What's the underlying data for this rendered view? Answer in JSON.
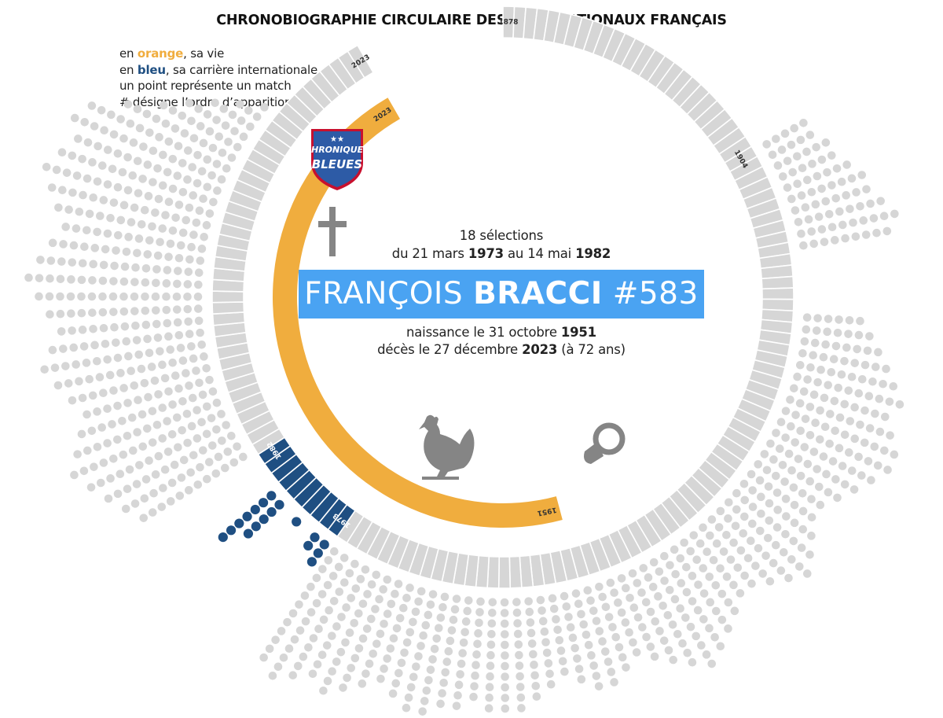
{
  "header": {
    "title": "CHRONOBIOGRAPHIE CIRCULAIRE DES INTERNATIONAUX FRANÇAIS"
  },
  "legend": {
    "l1_a": "en ",
    "l1_hl": "orange",
    "l1_b": ", sa vie",
    "l2_a": "en ",
    "l2_hl": "bleu",
    "l2_b": ", sa carrière internationale",
    "l3": "un point représente un match",
    "l4": "# désigne l’ordre d’apparition"
  },
  "logo": {
    "star_text": "★★",
    "line1": "CHRONIQUES",
    "line2": "BLEUES"
  },
  "player": {
    "first_name": "FRANÇOIS",
    "last_name": "BRACCI",
    "number": "#583",
    "selections": "18 sélections",
    "career_pre": "du 21 mars ",
    "career_start_year": "1973",
    "career_mid": "  au 14 mai ",
    "career_end_year": "1982",
    "birth_pre": "naissance le 31 octobre ",
    "birth_year": "1951",
    "death_pre": "décès le 27 décembre ",
    "death_year": "2023",
    "death_post": " (à 72 ans)"
  },
  "colors": {
    "life": "#f0ad3e",
    "career": "#1f4f82",
    "neutral": "#d6d6d6",
    "banner": "#4aa3f2",
    "icon": "#858585",
    "logo_bg": "#2d5ba6",
    "logo_border": "#c8102e"
  },
  "icons": [
    "cross-icon",
    "rooster-icon",
    "pacifier-icon",
    "chroniques-bleues-logo"
  ],
  "chart_data": {
    "type": "radial-timeline",
    "timeline_start_year": 1878,
    "timeline_end_year": 2023,
    "tick_labels": {
      "outer_start": "1878",
      "outer_mark": "1904",
      "outer_end": "2023",
      "life_start": "1951",
      "life_end": "2023",
      "career_start": "1973",
      "career_end": "1982"
    },
    "life": {
      "start_year": 1951,
      "end_year": 2023
    },
    "career": {
      "start_year": 1973,
      "end_year": 1982
    },
    "selections": 18,
    "match_dots_player": [
      3,
      2,
      1,
      5,
      7
    ],
    "match_dots_player_years": [
      1973,
      1974,
      1976,
      1978,
      1979
    ],
    "other_match_dots_by_year": [
      0,
      0,
      0,
      0,
      0,
      0,
      0,
      0,
      0,
      0,
      0,
      0,
      0,
      0,
      0,
      0,
      0,
      0,
      0,
      0,
      0,
      0,
      0,
      0,
      0,
      0,
      5,
      5,
      6,
      6,
      7,
      8,
      8,
      9,
      10,
      9,
      0,
      0,
      0,
      0,
      0,
      6,
      7,
      8,
      9,
      10,
      11,
      10,
      11,
      12,
      12,
      11,
      10,
      9,
      8,
      8,
      9,
      10,
      11,
      10,
      9,
      8,
      8,
      9,
      10,
      11,
      12,
      11,
      10,
      9,
      8,
      9,
      10,
      10,
      9,
      8,
      9,
      10,
      11,
      12,
      11,
      10,
      11,
      12,
      13,
      12,
      11,
      10,
      11,
      12,
      13,
      12,
      13,
      14,
      13,
      12,
      13,
      14,
      15,
      14,
      13,
      14,
      15,
      14,
      13,
      12,
      13,
      14,
      15,
      16,
      15,
      14,
      13,
      14,
      15,
      16,
      15,
      14,
      15,
      16,
      17,
      16,
      15,
      14,
      15,
      16,
      17,
      16,
      15,
      16,
      17,
      16,
      15,
      14,
      15,
      16,
      15,
      14,
      13,
      14,
      15,
      14,
      13,
      12,
      13,
      12
    ]
  }
}
